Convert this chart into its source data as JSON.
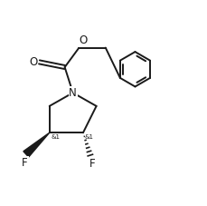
{
  "bg_color": "#ffffff",
  "line_color": "#1a1a1a",
  "line_width": 1.4,
  "font_size": 7.5,
  "figsize": [
    2.29,
    2.27
  ],
  "dpi": 100,
  "xlim": [
    0,
    10
  ],
  "ylim": [
    0,
    10
  ]
}
